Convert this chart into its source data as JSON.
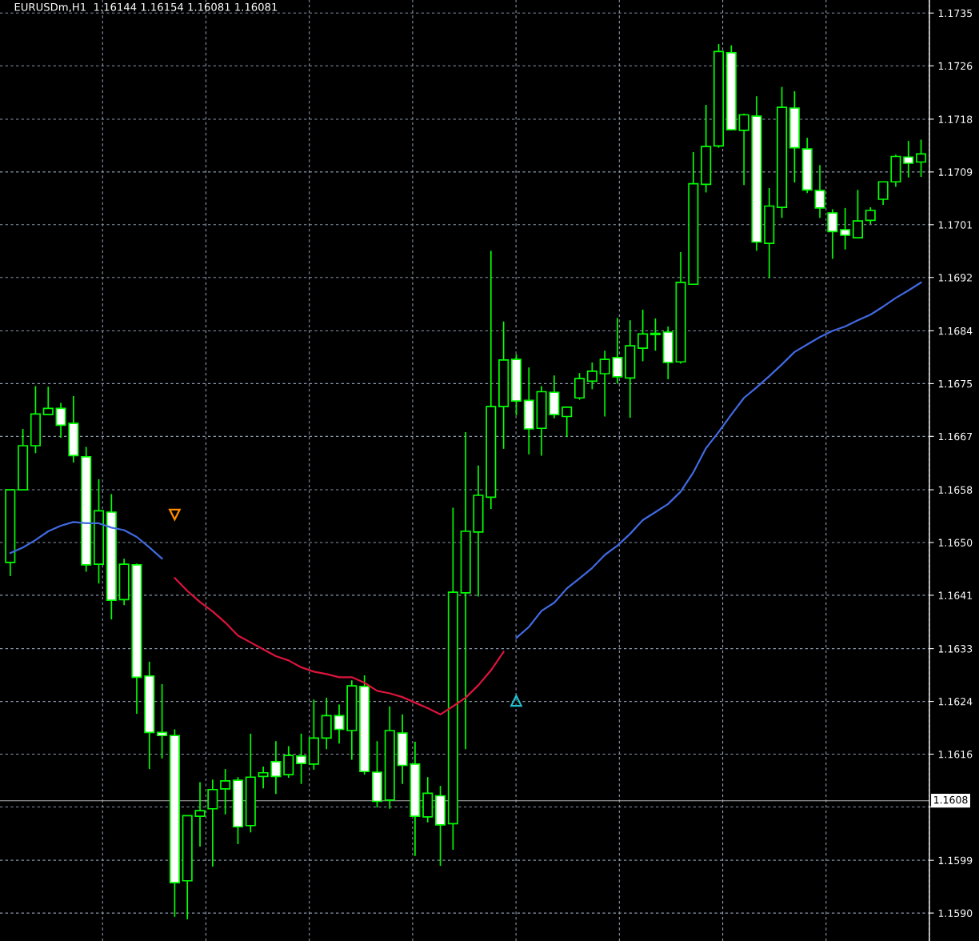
{
  "chart_data": {
    "type": "candlestick",
    "title": "EURUSDm,H1  1.16144 1.16154 1.16081 1.16081",
    "categories": [
      null,
      null,
      null,
      null,
      null,
      null,
      null,
      null,
      null,
      null,
      null,
      null,
      null,
      null,
      null,
      null,
      null,
      null,
      null,
      null,
      null,
      null,
      null,
      null,
      null,
      null,
      null,
      null,
      null,
      null,
      null,
      null,
      null,
      null,
      null,
      null,
      null,
      null,
      null,
      null,
      null,
      null,
      null,
      null,
      null,
      null,
      null,
      null,
      null,
      null,
      null,
      null,
      null,
      null,
      null,
      null,
      null,
      null,
      null,
      null,
      null,
      null,
      null,
      null,
      null,
      null,
      null,
      null,
      null,
      null,
      null,
      null,
      null
    ],
    "color": "#00ff00",
    "ohlc": [
      [
        1.16465,
        1.16582,
        1.16443,
        1.16582
      ],
      [
        1.16582,
        1.1668,
        1.16582,
        1.16653
      ],
      [
        1.16653,
        1.16749,
        1.16641,
        1.16704
      ],
      [
        1.16703,
        1.16748,
        1.16703,
        1.16713
      ],
      [
        1.16713,
        1.16722,
        1.16666,
        1.16686
      ],
      [
        1.16689,
        1.16733,
        1.16626,
        1.16637
      ],
      [
        1.16635,
        1.16651,
        1.1645,
        1.16461
      ],
      [
        1.16462,
        1.16599,
        1.16431,
        1.16548
      ],
      [
        1.16546,
        1.16575,
        1.16373,
        1.16404
      ],
      [
        1.16405,
        1.16471,
        1.16396,
        1.16462
      ],
      [
        1.16461,
        1.16463,
        1.16221,
        1.1628
      ],
      [
        1.16282,
        1.16305,
        1.16132,
        1.16191
      ],
      [
        1.16191,
        1.16269,
        1.16149,
        1.16186
      ],
      [
        1.16186,
        1.16196,
        1.15894,
        1.15949
      ],
      [
        1.15952,
        1.16057,
        1.1589,
        1.16057
      ],
      [
        1.16056,
        1.16111,
        1.16007,
        1.16065
      ],
      [
        1.16068,
        1.16115,
        1.15975,
        1.16099
      ],
      [
        1.161,
        1.16132,
        1.16059,
        1.16113
      ],
      [
        1.16114,
        1.16119,
        1.16011,
        1.16039
      ],
      [
        1.16041,
        1.16189,
        1.1603,
        1.16119
      ],
      [
        1.1612,
        1.16136,
        1.16101,
        1.16126
      ],
      [
        1.16144,
        1.16177,
        1.16092,
        1.1612
      ],
      [
        1.16123,
        1.16169,
        1.16118,
        1.16154
      ],
      [
        1.16153,
        1.16189,
        1.16108,
        1.16141
      ],
      [
        1.1614,
        1.16244,
        1.16131,
        1.16182
      ],
      [
        1.16182,
        1.16247,
        1.16164,
        1.16218
      ],
      [
        1.16218,
        1.16236,
        1.16173,
        1.16196
      ],
      [
        1.16194,
        1.16275,
        1.16147,
        1.16266
      ],
      [
        1.16265,
        1.16283,
        1.16123,
        1.16128
      ],
      [
        1.16127,
        1.16177,
        1.1607,
        1.1608
      ],
      [
        1.16082,
        1.16233,
        1.16068,
        1.16194
      ],
      [
        1.1619,
        1.1622,
        1.16108,
        1.16138
      ],
      [
        1.1614,
        1.16176,
        1.15992,
        1.16056
      ],
      [
        1.16055,
        1.16119,
        1.16046,
        1.16093
      ],
      [
        1.16089,
        1.16105,
        1.15976,
        1.16042
      ],
      [
        1.16044,
        1.16553,
        1.16002,
        1.16417
      ],
      [
        1.16416,
        1.16675,
        1.16164,
        1.16515
      ],
      [
        1.16514,
        1.16621,
        1.1641,
        1.16573
      ],
      [
        1.1657,
        1.16967,
        1.16551,
        1.16716
      ],
      [
        1.16716,
        1.16853,
        1.16648,
        1.16791
      ],
      [
        1.16792,
        1.168,
        1.16702,
        1.16725
      ],
      [
        1.16726,
        1.16779,
        1.16639,
        1.1668
      ],
      [
        1.16681,
        1.16749,
        1.16637,
        1.1674
      ],
      [
        1.16739,
        1.16766,
        1.16697,
        1.16703
      ],
      [
        1.167,
        1.16715,
        1.16667,
        1.16715
      ],
      [
        1.1673,
        1.1677,
        1.16727,
        1.16761
      ],
      [
        1.16757,
        1.16787,
        1.16744,
        1.16773
      ],
      [
        1.16769,
        1.16806,
        1.167,
        1.16792
      ],
      [
        1.16795,
        1.16859,
        1.16753,
        1.16764
      ],
      [
        1.16762,
        1.16855,
        1.16698,
        1.16814
      ],
      [
        1.1681,
        1.16872,
        1.16789,
        1.16833
      ],
      [
        1.16832,
        1.16858,
        1.16806,
        1.16834
      ],
      [
        1.16836,
        1.16845,
        1.1676,
        1.16787
      ],
      [
        1.16788,
        1.16965,
        1.16785,
        1.16916
      ],
      [
        1.16913,
        1.17126,
        1.16912,
        1.17075
      ],
      [
        1.17074,
        1.17202,
        1.17061,
        1.17135
      ],
      [
        1.17136,
        1.173,
        1.17133,
        1.17288
      ],
      [
        1.17286,
        1.17298,
        1.17161,
        1.17162
      ],
      [
        1.17161,
        1.17188,
        1.17073,
        1.17186
      ],
      [
        1.17184,
        1.17216,
        1.16967,
        1.16981
      ],
      [
        1.16979,
        1.17068,
        1.16923,
        1.17039
      ],
      [
        1.17037,
        1.17231,
        1.1702,
        1.17198
      ],
      [
        1.17197,
        1.17224,
        1.17077,
        1.17133
      ],
      [
        1.17131,
        1.17149,
        1.1706,
        1.17065
      ],
      [
        1.17064,
        1.17105,
        1.1702,
        1.17036
      ],
      [
        1.17028,
        1.17034,
        1.16954,
        1.16998
      ],
      [
        1.17001,
        1.17036,
        1.16969,
        1.16992
      ],
      [
        1.16988,
        1.17065,
        1.16988,
        1.17015
      ],
      [
        1.17016,
        1.17037,
        1.1701,
        1.17032
      ],
      [
        1.1705,
        1.17078,
        1.17041,
        1.17078
      ],
      [
        1.17078,
        1.17122,
        1.1707,
        1.17119
      ],
      [
        1.17118,
        1.17144,
        1.17085,
        1.17108
      ],
      [
        1.1711,
        1.17146,
        1.17086,
        1.17123
      ]
    ],
    "series": [
      {
        "type": "line",
        "color": "#4169e1",
        "values": [
          1.1648,
          1.16489,
          1.16501,
          1.16515,
          1.16524,
          1.1653,
          1.16528,
          1.16528,
          1.16521,
          1.16517,
          1.16506,
          1.16489,
          1.16471,
          null,
          null,
          null,
          null,
          null,
          null,
          null,
          null,
          null,
          null,
          null,
          null,
          null,
          null,
          null,
          null,
          null,
          null,
          null,
          null,
          null,
          null,
          null,
          null,
          null,
          null,
          null,
          null,
          null,
          null,
          null,
          null,
          null,
          null,
          null,
          null,
          null,
          null,
          null,
          null,
          null,
          null,
          null,
          null,
          null,
          null,
          null,
          null,
          null,
          null,
          null,
          null,
          null,
          null,
          null,
          null,
          null,
          null,
          null,
          null
        ]
      },
      {
        "type": "line",
        "color": "#dc143c",
        "values": [
          null,
          null,
          null,
          null,
          null,
          null,
          null,
          null,
          null,
          null,
          null,
          null,
          null,
          1.1644,
          1.16419,
          1.16401,
          1.16386,
          1.16368,
          1.16347,
          1.16336,
          1.16325,
          1.16314,
          1.16307,
          1.16296,
          1.16289,
          1.16285,
          1.1628,
          1.1628,
          1.16271,
          1.16258,
          1.16254,
          1.16248,
          1.16239,
          1.1623,
          1.1622,
          1.16233,
          1.16247,
          1.16267,
          1.16291,
          1.16321,
          null,
          null,
          null,
          null,
          null,
          null,
          null,
          null,
          null,
          null,
          null,
          null,
          null,
          null,
          null,
          null,
          null,
          null,
          null,
          null,
          null,
          null,
          null,
          null,
          null,
          null,
          null,
          null,
          null,
          null,
          null,
          null,
          null
        ]
      },
      {
        "type": "line",
        "color": "#4169e1",
        "values": [
          null,
          null,
          null,
          null,
          null,
          null,
          null,
          null,
          null,
          null,
          null,
          null,
          null,
          null,
          null,
          null,
          null,
          null,
          null,
          null,
          null,
          null,
          null,
          null,
          null,
          null,
          null,
          null,
          null,
          null,
          null,
          null,
          null,
          null,
          null,
          null,
          null,
          null,
          null,
          null,
          1.16343,
          1.16361,
          1.16387,
          1.164,
          1.16423,
          1.16439,
          1.16456,
          1.16477,
          1.16492,
          1.16511,
          1.16533,
          1.16546,
          1.16559,
          1.16579,
          1.1661,
          1.16649,
          1.16675,
          1.16703,
          1.1673,
          1.16747,
          1.16765,
          1.16784,
          1.16804,
          1.16816,
          1.16828,
          1.16838,
          1.16845,
          1.16855,
          1.16864,
          1.16877,
          1.16891,
          1.16903,
          1.16916
        ]
      },
      {
        "type": "scatter",
        "color": "#ff8c00",
        "marker": "triangle",
        "values": [
          null,
          null,
          null,
          null,
          null,
          null,
          null,
          null,
          null,
          null,
          null,
          null,
          null,
          1.16542,
          null,
          null,
          null,
          null,
          null,
          null,
          null,
          null,
          null,
          null,
          null,
          null,
          null,
          null,
          null,
          null,
          null,
          null,
          null,
          null,
          null,
          null,
          null,
          null,
          null,
          null,
          null,
          null,
          null,
          null,
          null,
          null,
          null,
          null,
          null,
          null,
          null,
          null,
          null,
          null,
          null,
          null,
          null,
          null,
          null,
          null,
          null,
          null,
          null,
          null,
          null,
          null,
          null,
          null,
          null,
          null,
          null,
          null,
          null
        ]
      },
      {
        "type": "scatter",
        "color": "#1fbfcf",
        "marker": "triangle",
        "values": [
          null,
          null,
          null,
          null,
          null,
          null,
          null,
          null,
          null,
          null,
          null,
          null,
          null,
          null,
          null,
          null,
          null,
          null,
          null,
          null,
          null,
          null,
          null,
          null,
          null,
          null,
          null,
          null,
          null,
          null,
          null,
          null,
          null,
          null,
          null,
          null,
          null,
          null,
          null,
          null,
          1.16242,
          null,
          null,
          null,
          null,
          null,
          null,
          null,
          null,
          null,
          null,
          null,
          null,
          null,
          null,
          null,
          null,
          null,
          null,
          null,
          null,
          null,
          null,
          null,
          null,
          null,
          null,
          null,
          null,
          null,
          null,
          null,
          null
        ]
      }
    ],
    "ylim": [
      1.15855,
      1.17371
    ],
    "yticks": [
      {
        "value": 1.1735,
        "label": "1.1735"
      },
      {
        "value": 1.17265,
        "label": "1.1726"
      },
      {
        "value": 1.17179,
        "label": "1.1718"
      },
      {
        "value": 1.17094,
        "label": "1.1709"
      },
      {
        "value": 1.17009,
        "label": "1.1701"
      },
      {
        "value": 1.16924,
        "label": "1.1692"
      },
      {
        "value": 1.16838,
        "label": "1.1684"
      },
      {
        "value": 1.16753,
        "label": "1.1675"
      },
      {
        "value": 1.16668,
        "label": "1.1667"
      },
      {
        "value": 1.16582,
        "label": "1.1658"
      },
      {
        "value": 1.16497,
        "label": "1.1650"
      },
      {
        "value": 1.16412,
        "label": "1.1641"
      },
      {
        "value": 1.16326,
        "label": "1.1633"
      },
      {
        "value": 1.16241,
        "label": "1.1624"
      },
      {
        "value": 1.16156,
        "label": "1.1616"
      },
      {
        "value": 1.16071,
        "label": null
      },
      {
        "value": 1.15985,
        "label": "1.1599"
      },
      {
        "value": 1.159,
        "label": "1.1590"
      }
    ],
    "grid": true,
    "tick_labels": "y",
    "ref_lines": [
      {
        "axis": "y",
        "value": 1.16081,
        "label": "1.1608",
        "color": "#b4b4b4"
      }
    ]
  }
}
